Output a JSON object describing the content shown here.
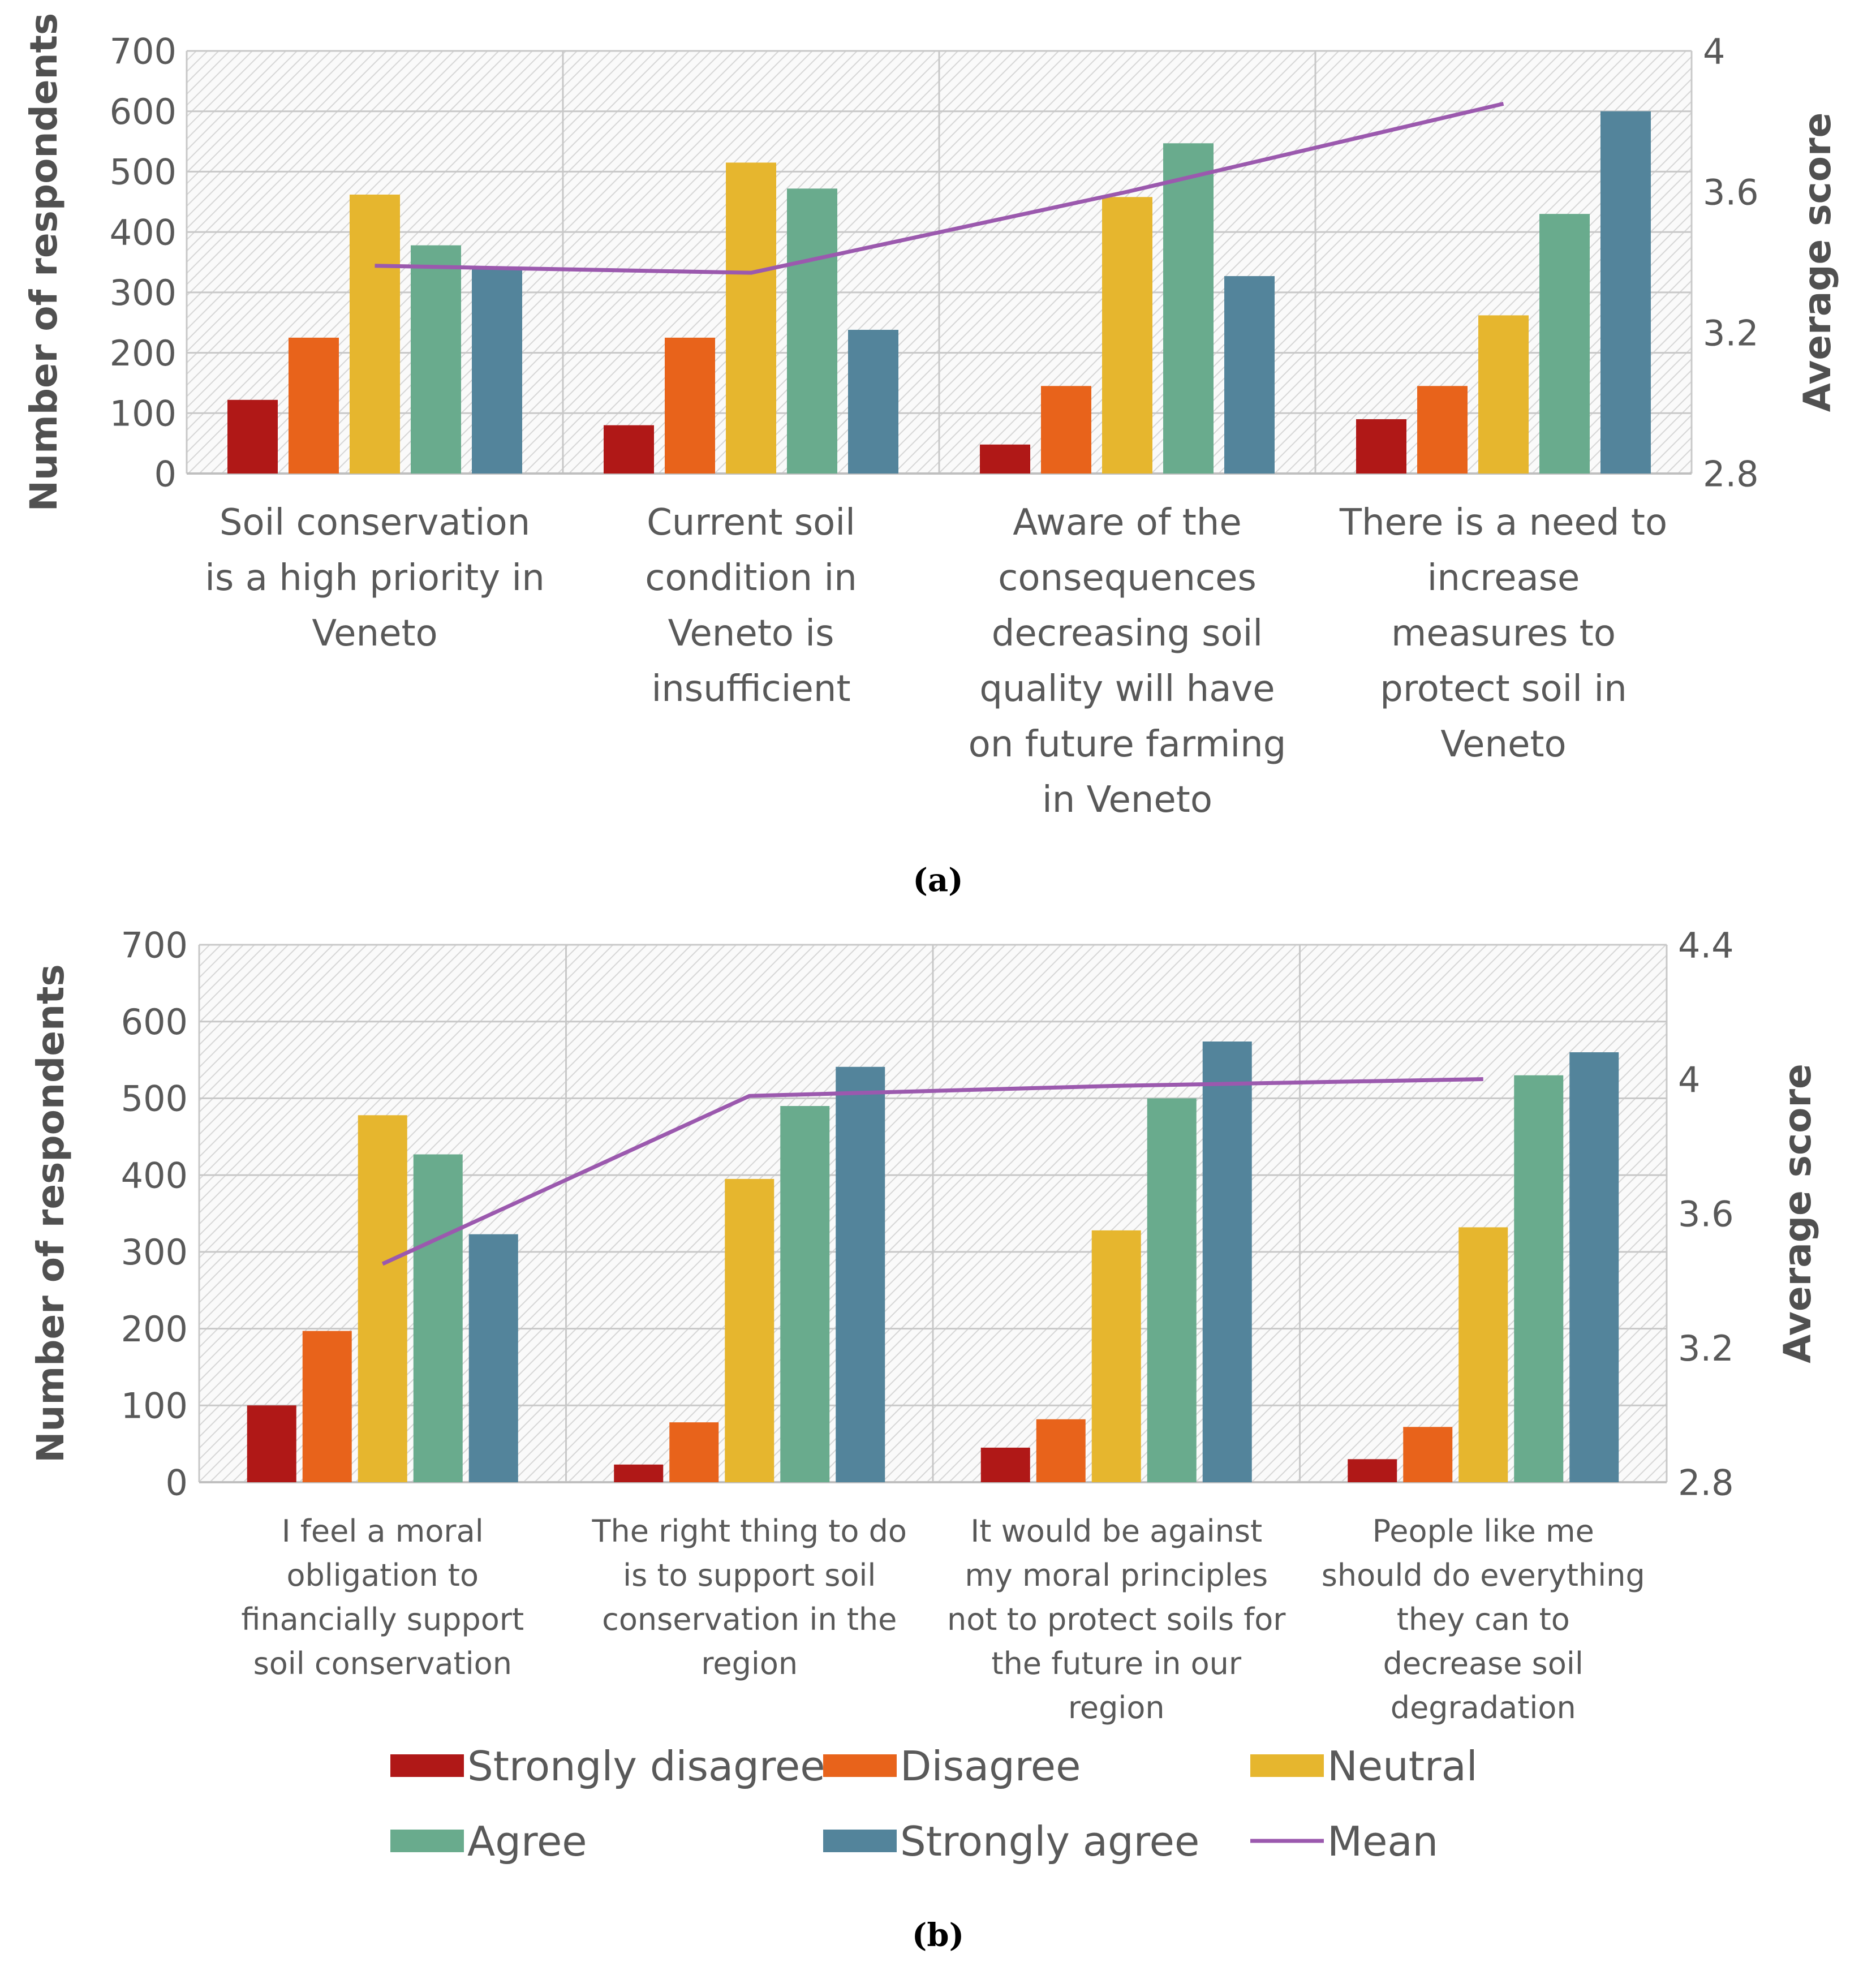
{
  "colors": {
    "strongly_disagree": "#B01817",
    "disagree": "#E8631B",
    "neutral": "#E6B62E",
    "agree": "#69AB8D",
    "strongly_agree": "#53849B",
    "mean": "#9B59AE"
  },
  "chart_data": [
    {
      "id": "a",
      "type": "bar",
      "panel_label": "(a)",
      "ylabel": "Number of respondents",
      "y2label": "Average score",
      "ylim": [
        0,
        700
      ],
      "yticks": [
        0,
        100,
        200,
        300,
        400,
        500,
        600,
        700
      ],
      "y2lim": [
        2.8,
        4.0
      ],
      "y2ticks": [
        "2.8",
        "3.2",
        "3.6",
        "4"
      ],
      "categories": [
        [
          "Soil conservation",
          "is a high priority in",
          "Veneto"
        ],
        [
          "Current soil",
          "condition in",
          "Veneto is",
          "insufficient"
        ],
        [
          "Aware of the",
          "consequences",
          "decreasing soil",
          "quality will have",
          "on future farming",
          "in Veneto"
        ],
        [
          "There is a need to",
          "increase",
          "measures to",
          "protect soil in",
          "Veneto"
        ]
      ],
      "series": [
        {
          "name": "Strongly disagree",
          "key": "strongly_disagree",
          "values": [
            122,
            80,
            48,
            90
          ]
        },
        {
          "name": "Disagree",
          "key": "disagree",
          "values": [
            225,
            225,
            145,
            145
          ]
        },
        {
          "name": "Neutral",
          "key": "neutral",
          "values": [
            462,
            515,
            458,
            262
          ]
        },
        {
          "name": "Agree",
          "key": "agree",
          "values": [
            378,
            472,
            547,
            430
          ]
        },
        {
          "name": "Strongly agree",
          "key": "strongly_agree",
          "values": [
            338,
            238,
            327,
            600
          ]
        }
      ],
      "mean": {
        "name": "Mean",
        "values": [
          3.39,
          3.37,
          3.6,
          3.85
        ]
      }
    },
    {
      "id": "b",
      "type": "bar",
      "panel_label": "(b)",
      "ylabel": "Number of respondents",
      "y2label": "Average score",
      "ylim": [
        0,
        700
      ],
      "yticks": [
        0,
        100,
        200,
        300,
        400,
        500,
        600,
        700
      ],
      "y2lim": [
        2.8,
        4.4
      ],
      "y2ticks": [
        "2.8",
        "3.2",
        "3.6",
        "4",
        "4.4"
      ],
      "categories": [
        [
          "I feel a moral",
          "obligation to",
          "financially support",
          "soil conservation"
        ],
        [
          "The right thing to do",
          "is to support soil",
          "conservation in the",
          "region"
        ],
        [
          "It would be against",
          "my moral principles",
          "not to protect soils for",
          "the future in our",
          "region"
        ],
        [
          "People like me",
          "should do everything",
          "they can to",
          "decrease soil",
          "degradation"
        ]
      ],
      "series": [
        {
          "name": "Strongly disagree",
          "key": "strongly_disagree",
          "values": [
            100,
            23,
            45,
            30
          ]
        },
        {
          "name": "Disagree",
          "key": "disagree",
          "values": [
            197,
            78,
            82,
            72
          ]
        },
        {
          "name": "Neutral",
          "key": "neutral",
          "values": [
            478,
            395,
            328,
            332
          ]
        },
        {
          "name": "Agree",
          "key": "agree",
          "values": [
            427,
            490,
            500,
            530
          ]
        },
        {
          "name": "Strongly agree",
          "key": "strongly_agree",
          "values": [
            323,
            541,
            574,
            560
          ]
        }
      ],
      "mean": {
        "name": "Mean",
        "values": [
          3.45,
          3.95,
          3.98,
          4.0
        ]
      }
    }
  ],
  "legend": [
    {
      "label": "Strongly disagree",
      "key": "strongly_disagree",
      "kind": "box"
    },
    {
      "label": "Disagree",
      "key": "disagree",
      "kind": "box"
    },
    {
      "label": "Neutral",
      "key": "neutral",
      "kind": "box"
    },
    {
      "label": "Agree",
      "key": "agree",
      "kind": "box"
    },
    {
      "label": "Strongly agree",
      "key": "strongly_agree",
      "kind": "box"
    },
    {
      "label": "Mean",
      "key": "mean",
      "kind": "line"
    }
  ]
}
